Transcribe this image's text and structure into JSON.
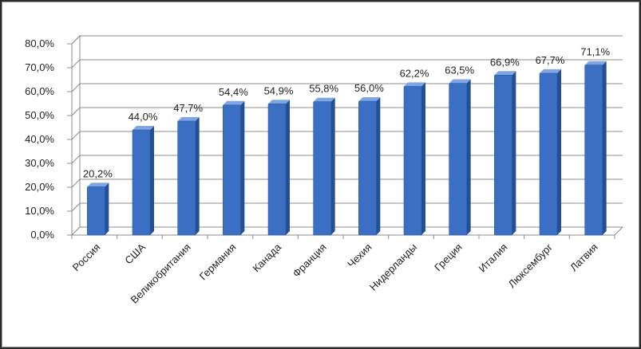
{
  "chart_data": {
    "type": "bar",
    "categories": [
      "Россия",
      "США",
      "Великобритания",
      "Германия",
      "Канада",
      "Франция",
      "Чехия",
      "Нидерланды",
      "Греция",
      "Италия",
      "Люксембург",
      "Латвия"
    ],
    "values": [
      20.2,
      44.0,
      47.7,
      54.4,
      54.9,
      55.8,
      56.0,
      62.2,
      63.5,
      66.9,
      67.7,
      71.1
    ],
    "data_labels": [
      "20,2%",
      "44,0%",
      "47,7%",
      "54,4%",
      "54,9%",
      "55,8%",
      "56,0%",
      "62,2%",
      "63,5%",
      "66,9%",
      "67,7%",
      "71,1%"
    ],
    "y_ticks": [
      0,
      10,
      20,
      30,
      40,
      50,
      60,
      70,
      80
    ],
    "y_tick_labels": [
      "0,0%",
      "10,0%",
      "20,0%",
      "30,0%",
      "40,0%",
      "50,0%",
      "60,0%",
      "70,0%",
      "80,0%"
    ],
    "ylim": [
      0,
      80
    ],
    "title": "",
    "xlabel": "",
    "ylabel": "",
    "grid": true,
    "legend": "none",
    "style": "3d-column",
    "colors": {
      "bar_front": "#3a6fc4",
      "bar_side": "#244f93",
      "bar_top": "#7ea6e4",
      "grid": "#8c8c8c",
      "wall": "#ffffff"
    }
  }
}
